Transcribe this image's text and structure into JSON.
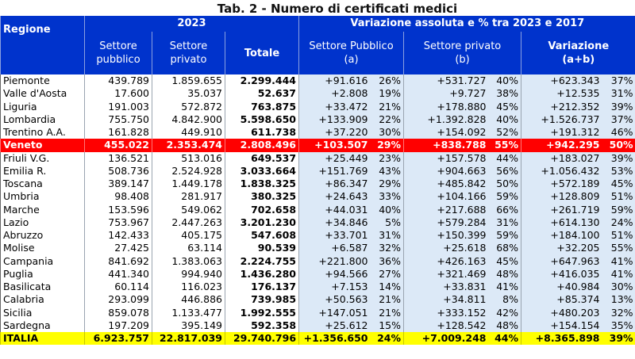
{
  "title": "Tab. 2 - Numero di certificati medici",
  "header": {
    "regione": "Regione",
    "year": "2023",
    "variazione_group": "Variazione assoluta e % tra 2023 e 2017",
    "pubblico": "Settore pubblico",
    "privato": "Settore privato",
    "totale": "Totale",
    "var_pubblico": "Settore Pubblico",
    "var_pubblico_sub": "(a)",
    "var_privato": "Settore privato",
    "var_privato_sub": "(b)",
    "variazione": "Variazione",
    "variazione_sub": "(a+b)"
  },
  "rows": [
    {
      "regione": "Piemonte",
      "pubblico": "439.789",
      "privato": "1.859.655",
      "totale": "2.299.444",
      "va": "+91.616",
      "pa": "26%",
      "vb": "+531.727",
      "pb": "40%",
      "vt": "+623.343",
      "pt": "37%"
    },
    {
      "regione": "Valle d'Aosta",
      "pubblico": "17.600",
      "privato": "35.037",
      "totale": "52.637",
      "va": "+2.808",
      "pa": "19%",
      "vb": "+9.727",
      "pb": "38%",
      "vt": "+12.535",
      "pt": "31%"
    },
    {
      "regione": "Liguria",
      "pubblico": "191.003",
      "privato": "572.872",
      "totale": "763.875",
      "va": "+33.472",
      "pa": "21%",
      "vb": "+178.880",
      "pb": "45%",
      "vt": "+212.352",
      "pt": "39%"
    },
    {
      "regione": "Lombardia",
      "pubblico": "755.750",
      "privato": "4.842.900",
      "totale": "5.598.650",
      "va": "+133.909",
      "pa": "22%",
      "vb": "+1.392.828",
      "pb": "40%",
      "vt": "+1.526.737",
      "pt": "37%"
    },
    {
      "regione": "Trentino A.A.",
      "pubblico": "161.828",
      "privato": "449.910",
      "totale": "611.738",
      "va": "+37.220",
      "pa": "30%",
      "vb": "+154.092",
      "pb": "52%",
      "vt": "+191.312",
      "pt": "46%"
    },
    {
      "regione": "Veneto",
      "pubblico": "455.022",
      "privato": "2.353.474",
      "totale": "2.808.496",
      "va": "+103.507",
      "pa": "29%",
      "vb": "+838.788",
      "pb": "55%",
      "vt": "+942.295",
      "pt": "50%"
    },
    {
      "regione": "Friuli V.G.",
      "pubblico": "136.521",
      "privato": "513.016",
      "totale": "649.537",
      "va": "+25.449",
      "pa": "23%",
      "vb": "+157.578",
      "pb": "44%",
      "vt": "+183.027",
      "pt": "39%"
    },
    {
      "regione": "Emilia R.",
      "pubblico": "508.736",
      "privato": "2.524.928",
      "totale": "3.033.664",
      "va": "+151.769",
      "pa": "43%",
      "vb": "+904.663",
      "pb": "56%",
      "vt": "+1.056.432",
      "pt": "53%"
    },
    {
      "regione": "Toscana",
      "pubblico": "389.147",
      "privato": "1.449.178",
      "totale": "1.838.325",
      "va": "+86.347",
      "pa": "29%",
      "vb": "+485.842",
      "pb": "50%",
      "vt": "+572.189",
      "pt": "45%"
    },
    {
      "regione": "Umbria",
      "pubblico": "98.408",
      "privato": "281.917",
      "totale": "380.325",
      "va": "+24.643",
      "pa": "33%",
      "vb": "+104.166",
      "pb": "59%",
      "vt": "+128.809",
      "pt": "51%"
    },
    {
      "regione": "Marche",
      "pubblico": "153.596",
      "privato": "549.062",
      "totale": "702.658",
      "va": "+44.031",
      "pa": "40%",
      "vb": "+217.688",
      "pb": "66%",
      "vt": "+261.719",
      "pt": "59%"
    },
    {
      "regione": "Lazio",
      "pubblico": "753.967",
      "privato": "2.447.263",
      "totale": "3.201.230",
      "va": "+34.846",
      "pa": "5%",
      "vb": "+579.284",
      "pb": "31%",
      "vt": "+614.130",
      "pt": "24%"
    },
    {
      "regione": "Abruzzo",
      "pubblico": "142.433",
      "privato": "405.175",
      "totale": "547.608",
      "va": "+33.701",
      "pa": "31%",
      "vb": "+150.399",
      "pb": "59%",
      "vt": "+184.100",
      "pt": "51%"
    },
    {
      "regione": "Molise",
      "pubblico": "27.425",
      "privato": "63.114",
      "totale": "90.539",
      "va": "+6.587",
      "pa": "32%",
      "vb": "+25.618",
      "pb": "68%",
      "vt": "+32.205",
      "pt": "55%"
    },
    {
      "regione": "Campania",
      "pubblico": "841.692",
      "privato": "1.383.063",
      "totale": "2.224.755",
      "va": "+221.800",
      "pa": "36%",
      "vb": "+426.163",
      "pb": "45%",
      "vt": "+647.963",
      "pt": "41%"
    },
    {
      "regione": "Puglia",
      "pubblico": "441.340",
      "privato": "994.940",
      "totale": "1.436.280",
      "va": "+94.566",
      "pa": "27%",
      "vb": "+321.469",
      "pb": "48%",
      "vt": "+416.035",
      "pt": "41%"
    },
    {
      "regione": "Basilicata",
      "pubblico": "60.114",
      "privato": "116.023",
      "totale": "176.137",
      "va": "+7.153",
      "pa": "14%",
      "vb": "+33.831",
      "pb": "41%",
      "vt": "+40.984",
      "pt": "30%"
    },
    {
      "regione": "Calabria",
      "pubblico": "293.099",
      "privato": "446.886",
      "totale": "739.985",
      "va": "+50.563",
      "pa": "21%",
      "vb": "+34.811",
      "pb": "8%",
      "vt": "+85.374",
      "pt": "13%"
    },
    {
      "regione": "Sicilia",
      "pubblico": "859.078",
      "privato": "1.133.477",
      "totale": "1.992.555",
      "va": "+147.051",
      "pa": "21%",
      "vb": "+333.152",
      "pb": "42%",
      "vt": "+480.203",
      "pt": "32%"
    },
    {
      "regione": "Sardegna",
      "pubblico": "197.209",
      "privato": "395.149",
      "totale": "592.358",
      "va": "+25.612",
      "pa": "15%",
      "vb": "+128.542",
      "pb": "48%",
      "vt": "+154.154",
      "pt": "35%"
    }
  ],
  "italia": {
    "regione": "ITALIA",
    "pubblico": "6.923.757",
    "privato": "22.817.039",
    "totale": "29.740.796",
    "va": "+1.356.650",
    "pa": "24%",
    "vb": "+7.009.248",
    "pb": "44%",
    "vt": "+8.365.898",
    "pt": "39%"
  },
  "colors": {
    "header_blue": "#0033cc",
    "veneto_red": "#ff0000",
    "italia_yellow": "#ffff00",
    "variation_bg": "#dce9f7"
  }
}
